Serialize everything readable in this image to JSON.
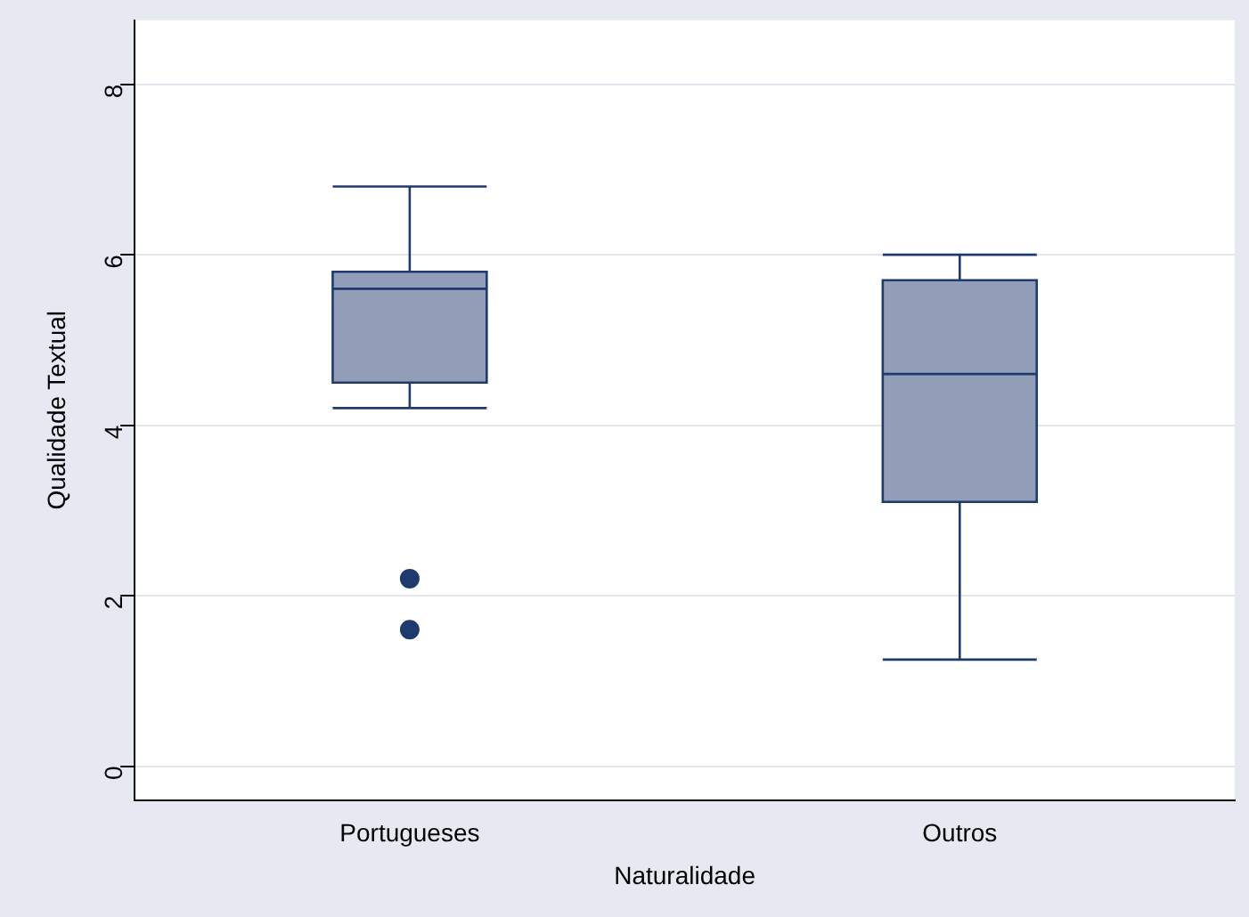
{
  "chart_data": {
    "type": "box",
    "xlabel": "Naturalidade",
    "ylabel": "Qualidade Textual",
    "categories": [
      "Portugueses",
      "Outros"
    ],
    "boxes": [
      {
        "low": 4.2,
        "q1": 4.5,
        "median": 5.6,
        "q3": 5.8,
        "high": 6.8,
        "outliers": [
          2.2,
          1.6
        ]
      },
      {
        "low": 1.25,
        "q1": 3.1,
        "median": 4.6,
        "q3": 5.7,
        "high": 6.0
      }
    ],
    "color": "#929eb7",
    "ylim": [
      -0.4,
      8.75
    ],
    "yticks": [
      0,
      2,
      4,
      6,
      8
    ],
    "grid": "y",
    "legend": false
  }
}
